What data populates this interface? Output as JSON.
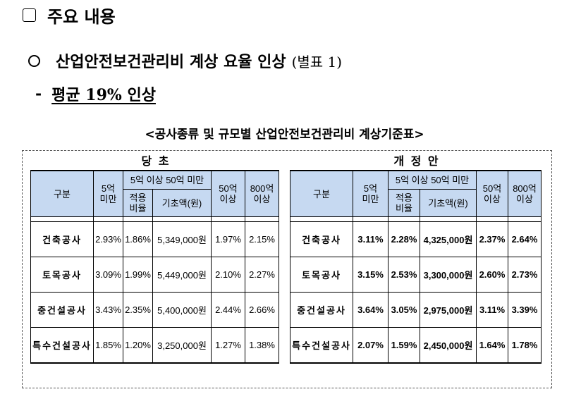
{
  "heading": {
    "title": "주요 내용"
  },
  "point": {
    "title": "산업안전보건관리비 계상 요율 인상",
    "ref": "(별표 1)"
  },
  "subpoint": {
    "dash": "-",
    "text": "평균 19% 인상"
  },
  "table_caption": "<공사종류 및 규모별 산업안전보건관리비 계상기준표>",
  "columns": {
    "category": "구분",
    "under5": "5억\n미만",
    "mid": "5억 이상 50억 미만",
    "rate": "적용\n비율",
    "base": "기초액(원)",
    "over50": "50억\n이상",
    "over800": "800억\n이상"
  },
  "current": {
    "title": "당 초",
    "rows": [
      {
        "name": "건축공사",
        "under5": "2.93%",
        "rate": "1.86%",
        "base": "5,349,000원",
        "over50": "1.97%",
        "over800": "2.15%"
      },
      {
        "name": "토목공사",
        "under5": "3.09%",
        "rate": "1.99%",
        "base": "5,449,000원",
        "over50": "2.10%",
        "over800": "2.27%"
      },
      {
        "name": "중건설공사",
        "under5": "3.43%",
        "rate": "2.35%",
        "base": "5,400,000원",
        "over50": "2.44%",
        "over800": "2.66%"
      },
      {
        "name": "특수건설공사",
        "under5": "1.85%",
        "rate": "1.20%",
        "base": "3,250,000원",
        "over50": "1.27%",
        "over800": "1.38%"
      }
    ]
  },
  "revised": {
    "title": "개 정 안",
    "rows": [
      {
        "name": "건축공사",
        "under5": "3.11%",
        "rate": "2.28%",
        "base": "4,325,000원",
        "over50": "2.37%",
        "over800": "2.64%"
      },
      {
        "name": "토목공사",
        "under5": "3.15%",
        "rate": "2.53%",
        "base": "3,300,000원",
        "over50": "2.60%",
        "over800": "2.73%"
      },
      {
        "name": "중건설공사",
        "under5": "3.64%",
        "rate": "3.05%",
        "base": "2,975,000원",
        "over50": "3.11%",
        "over800": "3.39%"
      },
      {
        "name": "특수건설공사",
        "under5": "2.07%",
        "rate": "1.59%",
        "base": "2,450,000원",
        "over50": "1.64%",
        "over800": "1.78%"
      }
    ]
  }
}
